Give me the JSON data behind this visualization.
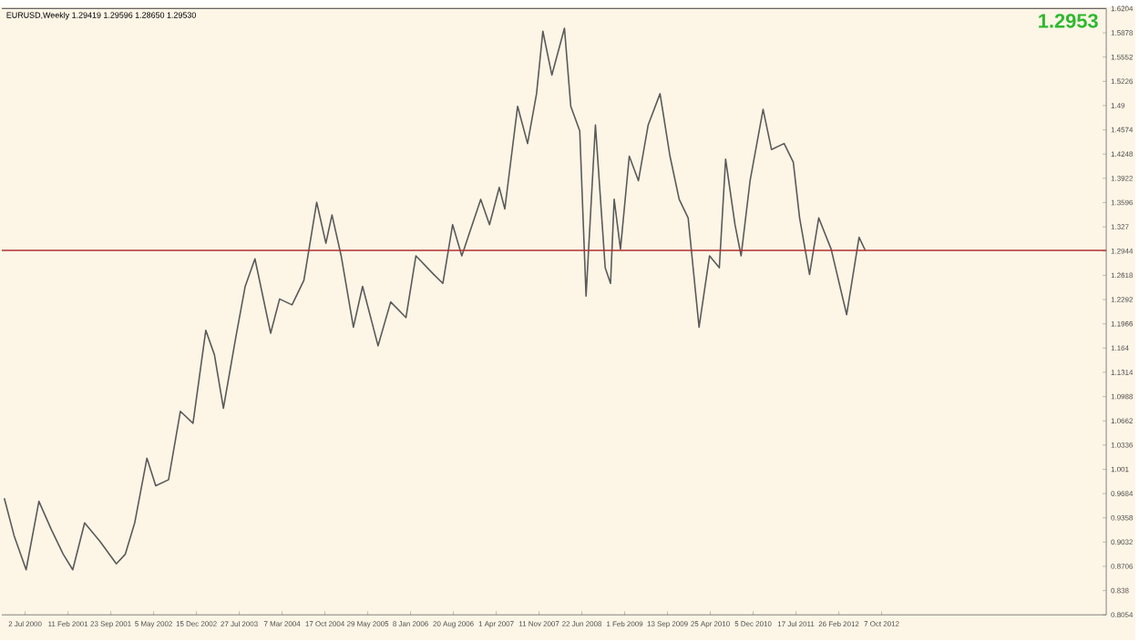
{
  "chart_data": {
    "type": "line",
    "title": "EURUSD,Weekly  1.29419 1.29596 1.28650 1.29530",
    "annotations": [
      "1.2953"
    ],
    "series": [
      {
        "color": "#5a5a5a",
        "x": [
          "2000-03-15",
          "2000-05-05",
          "2000-07-07",
          "2000-09-12",
          "2000-11-16",
          "2001-01-17",
          "2001-03-08",
          "2001-05-09",
          "2001-07-29",
          "2001-10-22",
          "2001-12-08",
          "2002-01-26",
          "2002-03-31",
          "2002-05-16",
          "2002-07-22",
          "2002-09-22",
          "2002-11-27",
          "2003-02-02",
          "2003-03-19",
          "2003-05-05",
          "2003-07-10",
          "2003-08-27",
          "2003-10-17",
          "2004-01-07",
          "2004-02-23",
          "2004-04-28",
          "2004-06-29",
          "2004-09-04",
          "2004-10-22",
          "2004-11-23",
          "2005-01-10",
          "2005-03-15",
          "2005-05-02",
          "2005-07-22",
          "2005-09-26",
          "2005-12-15",
          "2006-02-05",
          "2006-05-09",
          "2006-06-26",
          "2006-08-16",
          "2006-10-03",
          "2007-01-10",
          "2007-02-25",
          "2007-04-17",
          "2007-05-16",
          "2007-07-22",
          "2007-09-12",
          "2007-10-29",
          "2007-12-01",
          "2008-01-17",
          "2008-03-23",
          "2008-04-25",
          "2008-06-11",
          "2008-07-14",
          "2008-09-01",
          "2008-10-22",
          "2008-11-19",
          "2008-12-08",
          "2009-01-10",
          "2009-02-25",
          "2009-04-14",
          "2009-06-04",
          "2009-08-05",
          "2009-09-26",
          "2009-11-13",
          "2009-12-30",
          "2010-02-25",
          "2010-04-21",
          "2010-06-11",
          "2010-07-14",
          "2010-09-01",
          "2010-10-03",
          "2010-11-19",
          "2011-01-26",
          "2011-03-11",
          "2011-05-16",
          "2011-07-03",
          "2011-08-05",
          "2011-09-26",
          "2011-11-13",
          "2012-01-17",
          "2012-04-07",
          "2012-06-11",
          "2012-07-14"
        ],
        "values": [
          0.962,
          0.912,
          0.866,
          0.958,
          0.92,
          0.887,
          0.866,
          0.929,
          0.904,
          0.874,
          0.887,
          0.929,
          1.016,
          0.979,
          0.987,
          1.079,
          1.063,
          1.188,
          1.155,
          1.083,
          1.18,
          1.247,
          1.284,
          1.184,
          1.23,
          1.222,
          1.255,
          1.36,
          1.305,
          1.343,
          1.288,
          1.192,
          1.247,
          1.167,
          1.226,
          1.205,
          1.288,
          1.263,
          1.251,
          1.33,
          1.288,
          1.364,
          1.33,
          1.38,
          1.351,
          1.489,
          1.439,
          1.506,
          1.59,
          1.531,
          1.594,
          1.489,
          1.456,
          1.234,
          1.464,
          1.272,
          1.251,
          1.364,
          1.297,
          1.422,
          1.389,
          1.464,
          1.506,
          1.422,
          1.364,
          1.339,
          1.192,
          1.288,
          1.272,
          1.418,
          1.33,
          1.288,
          1.389,
          1.485,
          1.431,
          1.439,
          1.414,
          1.339,
          1.263,
          1.339,
          1.297,
          1.209,
          1.313,
          1.295
        ]
      }
    ],
    "xlim": [
      "2000-03-02",
      "2015-12-26"
    ],
    "xticks": [
      {
        "value": "2000-07-02",
        "label": "2 Jul 2000"
      },
      {
        "value": "2001-02-11",
        "label": "11 Feb 2001"
      },
      {
        "value": "2001-09-23",
        "label": "23 Sep 2001"
      },
      {
        "value": "2002-05-05",
        "label": "5 May 2002"
      },
      {
        "value": "2002-12-15",
        "label": "15 Dec 2002"
      },
      {
        "value": "2003-07-27",
        "label": "27 Jul 2003"
      },
      {
        "value": "2004-03-07",
        "label": "7 Mar 2004"
      },
      {
        "value": "2004-10-17",
        "label": "17 Oct 2004"
      },
      {
        "value": "2005-05-29",
        "label": "29 May 2005"
      },
      {
        "value": "2006-01-08",
        "label": "8 Jan 2006"
      },
      {
        "value": "2006-08-20",
        "label": "20 Aug 2006"
      },
      {
        "value": "2007-04-01",
        "label": "1 Apr 2007"
      },
      {
        "value": "2007-11-11",
        "label": "11 Nov 2007"
      },
      {
        "value": "2008-06-22",
        "label": "22 Jun 2008"
      },
      {
        "value": "2009-02-01",
        "label": "1 Feb 2009"
      },
      {
        "value": "2009-09-13",
        "label": "13 Sep 2009"
      },
      {
        "value": "2010-04-25",
        "label": "25 Apr 2010"
      },
      {
        "value": "2010-12-05",
        "label": "5 Dec 2010"
      },
      {
        "value": "2011-07-17",
        "label": "17 Jul 2011"
      },
      {
        "value": "2012-02-26",
        "label": "26 Feb 2012"
      },
      {
        "value": "2012-10-07",
        "label": "7 Oct 2012"
      }
    ],
    "ylim": [
      0.8054,
      1.6204
    ],
    "yticks": [
      0.8054,
      0.838,
      0.8706,
      0.9032,
      0.9358,
      0.9684,
      1.001,
      1.0336,
      1.0662,
      1.0988,
      1.1314,
      1.164,
      1.1966,
      1.2292,
      1.2618,
      1.2944,
      1.327,
      1.3596,
      1.3922,
      1.4248,
      1.4574,
      1.49,
      1.5226,
      1.5552,
      1.5878,
      1.6204
    ],
    "ref_lines": [
      {
        "axis": "y",
        "value": 1.2953,
        "color": "#b03030"
      }
    ]
  }
}
